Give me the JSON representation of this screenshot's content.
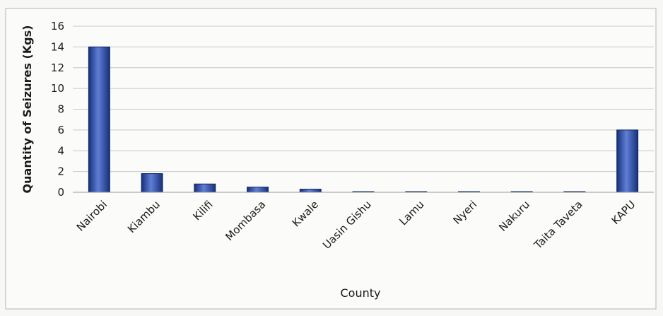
{
  "chart_data": {
    "type": "bar",
    "categories": [
      "Nairobi",
      "Kiambu",
      "Kilifi",
      "Mombasa",
      "Kwale",
      "Uasin Gishu",
      "Lamu",
      "Nyeri",
      "Nakuru",
      "Taita Taveta",
      "KAPU"
    ],
    "values": [
      14,
      1.8,
      0.8,
      0.5,
      0.3,
      0.05,
      0.05,
      0.05,
      0.05,
      0.05,
      6
    ],
    "title": "",
    "xlabel": "County",
    "ylabel": "Quantity of Seizures (Kgs)",
    "ylim": [
      0,
      16
    ],
    "yticks": [
      0,
      2,
      4,
      6,
      8,
      10,
      12,
      14,
      16
    ],
    "grid": true,
    "legend": "none",
    "colors": {
      "bar": "#1f3a8a",
      "bar_highlight": "#5f7fd6",
      "grid": "#c8c8c8"
    }
  }
}
